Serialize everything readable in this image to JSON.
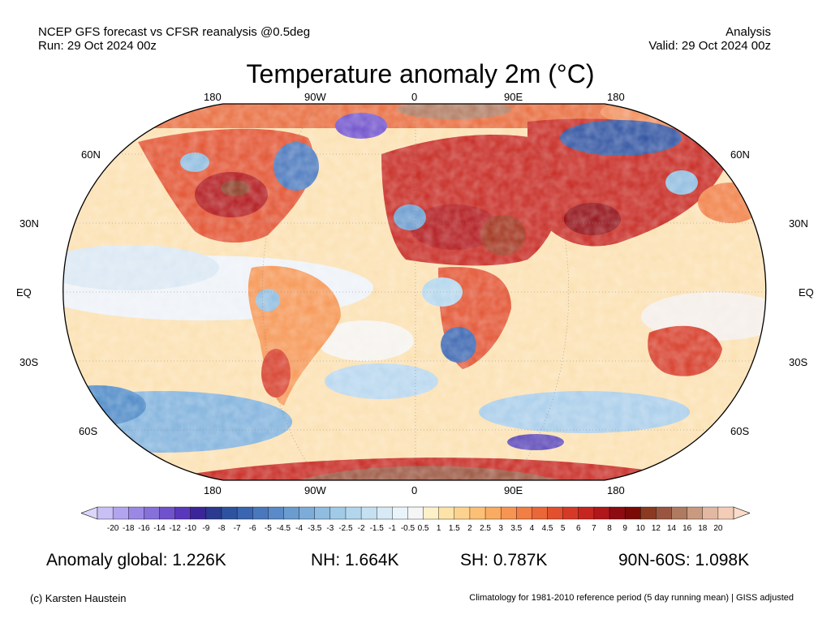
{
  "header": {
    "left_line1": "NCEP GFS forecast vs CFSR reanalysis @0.5deg",
    "left_line2": "Run: 29 Oct 2024 00z",
    "right_line1": "Analysis",
    "right_line2": "Valid: 29 Oct 2024 00z"
  },
  "title": "Temperature anomaly 2m (°C)",
  "map": {
    "lon_labels_top": [
      "180",
      "90W",
      "0",
      "90E",
      "180"
    ],
    "lon_labels_bottom": [
      "180",
      "90W",
      "0",
      "90E",
      "180"
    ],
    "lat_labels_left": [
      "60N",
      "30N",
      "EQ",
      "30S",
      "60S"
    ],
    "lat_labels_right": [
      "60N",
      "30N",
      "EQ",
      "30S",
      "60S"
    ]
  },
  "colorbar": {
    "ticks": [
      "-20",
      "-18",
      "-16",
      "-14",
      "-12",
      "-10",
      "-9",
      "-8",
      "-7",
      "-6",
      "-5",
      "-4.5",
      "-4",
      "-3.5",
      "-3",
      "-2.5",
      "-2",
      "-1.5",
      "-1",
      "-0.5",
      "0.5",
      "1",
      "1.5",
      "2",
      "2.5",
      "3",
      "3.5",
      "4",
      "4.5",
      "5",
      "6",
      "7",
      "8",
      "9",
      "10",
      "12",
      "14",
      "16",
      "18",
      "20"
    ],
    "colors": [
      "#c9c0f5",
      "#b2a4ee",
      "#9c88e4",
      "#8670da",
      "#7052cc",
      "#5a38bb",
      "#3c2599",
      "#2b3a8f",
      "#2f52a0",
      "#3a65b0",
      "#4a78bd",
      "#5a8ac7",
      "#6b9ccf",
      "#7dacd8",
      "#8fbcdf",
      "#a1cae6",
      "#b3d6ec",
      "#c5e0f1",
      "#d7eaf6",
      "#e9f3fa",
      "#f5f5f5",
      "#fdf1c8",
      "#fde3a8",
      "#fcd38e",
      "#fbc076",
      "#f9ab62",
      "#f69552",
      "#f17e44",
      "#ea6738",
      "#e2502e",
      "#d63a26",
      "#c6261f",
      "#b0161a",
      "#8f0b12",
      "#7a0a05",
      "#8a3a22",
      "#9a5540",
      "#b07a60",
      "#c99a80",
      "#e3b8a2",
      "#f3cdb8"
    ],
    "left_cap_color": "#dcd6fb",
    "right_cap_color": "#f9dccb"
  },
  "stats": {
    "global": "Anomaly global: 1.226K",
    "nh": "NH: 1.664K",
    "sh": "SH: 0.787K",
    "arctic": "90N-60S: 1.098K"
  },
  "footer": {
    "credit": "(c) Karsten Haustein",
    "climatology": "Climatology for 1981-2010 reference period (5 day running mean) | GISS adjusted"
  }
}
